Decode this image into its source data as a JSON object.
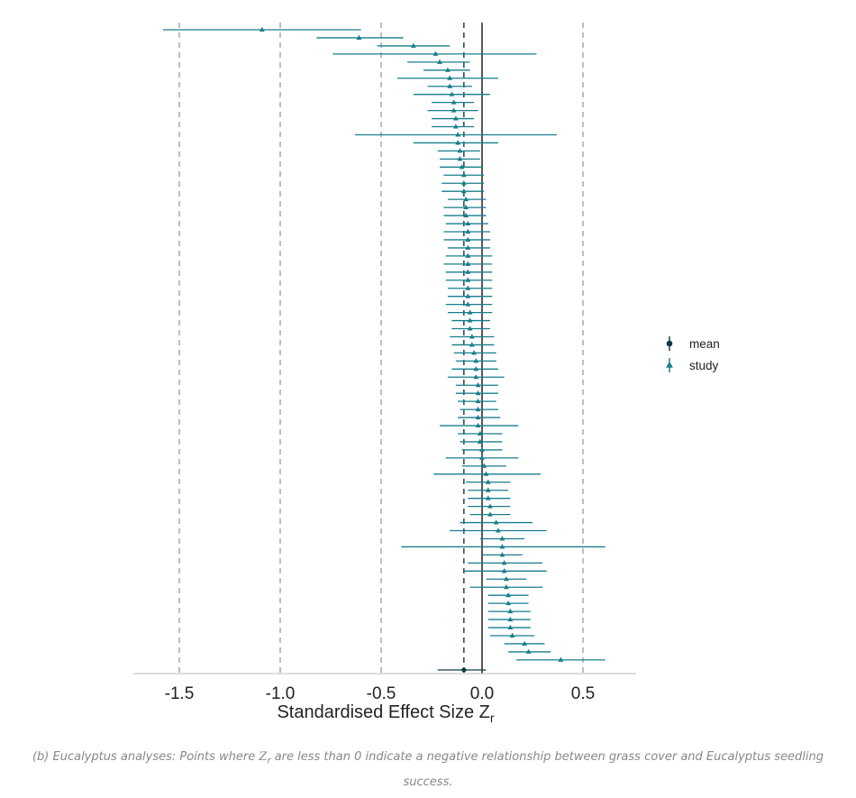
{
  "chart_data": {
    "type": "forest",
    "xlabel": "Standardised Effect Size Z",
    "xlabel_subscript": "r",
    "xticks": [
      -1.5,
      -1.0,
      -0.5,
      0.0,
      0.5
    ],
    "xtick_labels": [
      "-1.5",
      "-1.0",
      "-0.5",
      "0.0",
      "0.5"
    ],
    "xlim": [
      -1.72,
      0.75
    ],
    "reference_line": 0.0,
    "mean_line": -0.09,
    "dashed_grid": [
      -1.5,
      -1.0,
      -0.5,
      0.5
    ],
    "legend_position": "right",
    "legend": [
      {
        "label": "mean",
        "marker": "circle",
        "color": "#0d3b45"
      },
      {
        "label": "study",
        "marker": "triangle",
        "color": "#177e8c"
      }
    ],
    "mean": {
      "estimate": -0.09,
      "ci_low": -0.22,
      "ci_high": 0.02
    },
    "studies": [
      {
        "estimate": -1.09,
        "ci_low": -1.58,
        "ci_high": -0.6
      },
      {
        "estimate": -0.61,
        "ci_low": -0.82,
        "ci_high": -0.39
      },
      {
        "estimate": -0.34,
        "ci_low": -0.52,
        "ci_high": -0.16
      },
      {
        "estimate": -0.23,
        "ci_low": -0.74,
        "ci_high": 0.27
      },
      {
        "estimate": -0.21,
        "ci_low": -0.37,
        "ci_high": -0.06
      },
      {
        "estimate": -0.17,
        "ci_low": -0.29,
        "ci_high": -0.06
      },
      {
        "estimate": -0.16,
        "ci_low": -0.42,
        "ci_high": 0.08
      },
      {
        "estimate": -0.16,
        "ci_low": -0.27,
        "ci_high": -0.05
      },
      {
        "estimate": -0.15,
        "ci_low": -0.34,
        "ci_high": 0.04
      },
      {
        "estimate": -0.14,
        "ci_low": -0.25,
        "ci_high": -0.04
      },
      {
        "estimate": -0.14,
        "ci_low": -0.27,
        "ci_high": -0.02
      },
      {
        "estimate": -0.13,
        "ci_low": -0.25,
        "ci_high": -0.04
      },
      {
        "estimate": -0.13,
        "ci_low": -0.25,
        "ci_high": -0.04
      },
      {
        "estimate": -0.12,
        "ci_low": -0.63,
        "ci_high": 0.37
      },
      {
        "estimate": -0.12,
        "ci_low": -0.34,
        "ci_high": 0.08
      },
      {
        "estimate": -0.11,
        "ci_low": -0.22,
        "ci_high": -0.01
      },
      {
        "estimate": -0.11,
        "ci_low": -0.21,
        "ci_high": -0.01
      },
      {
        "estimate": -0.1,
        "ci_low": -0.21,
        "ci_high": 0.0
      },
      {
        "estimate": -0.09,
        "ci_low": -0.19,
        "ci_high": 0.01
      },
      {
        "estimate": -0.09,
        "ci_low": -0.2,
        "ci_high": 0.01
      },
      {
        "estimate": -0.09,
        "ci_low": -0.2,
        "ci_high": 0.01
      },
      {
        "estimate": -0.08,
        "ci_low": -0.17,
        "ci_high": 0.02
      },
      {
        "estimate": -0.08,
        "ci_low": -0.19,
        "ci_high": 0.02
      },
      {
        "estimate": -0.08,
        "ci_low": -0.19,
        "ci_high": 0.02
      },
      {
        "estimate": -0.07,
        "ci_low": -0.18,
        "ci_high": 0.03
      },
      {
        "estimate": -0.07,
        "ci_low": -0.19,
        "ci_high": 0.04
      },
      {
        "estimate": -0.07,
        "ci_low": -0.19,
        "ci_high": 0.04
      },
      {
        "estimate": -0.07,
        "ci_low": -0.17,
        "ci_high": 0.04
      },
      {
        "estimate": -0.07,
        "ci_low": -0.18,
        "ci_high": 0.05
      },
      {
        "estimate": -0.07,
        "ci_low": -0.19,
        "ci_high": 0.05
      },
      {
        "estimate": -0.07,
        "ci_low": -0.18,
        "ci_high": 0.05
      },
      {
        "estimate": -0.07,
        "ci_low": -0.18,
        "ci_high": 0.05
      },
      {
        "estimate": -0.07,
        "ci_low": -0.17,
        "ci_high": 0.05
      },
      {
        "estimate": -0.07,
        "ci_low": -0.17,
        "ci_high": 0.05
      },
      {
        "estimate": -0.07,
        "ci_low": -0.18,
        "ci_high": 0.05
      },
      {
        "estimate": -0.06,
        "ci_low": -0.17,
        "ci_high": 0.05
      },
      {
        "estimate": -0.06,
        "ci_low": -0.15,
        "ci_high": 0.04
      },
      {
        "estimate": -0.06,
        "ci_low": -0.15,
        "ci_high": 0.04
      },
      {
        "estimate": -0.05,
        "ci_low": -0.16,
        "ci_high": 0.06
      },
      {
        "estimate": -0.05,
        "ci_low": -0.15,
        "ci_high": 0.06
      },
      {
        "estimate": -0.04,
        "ci_low": -0.14,
        "ci_high": 0.07
      },
      {
        "estimate": -0.03,
        "ci_low": -0.13,
        "ci_high": 0.07
      },
      {
        "estimate": -0.03,
        "ci_low": -0.15,
        "ci_high": 0.08
      },
      {
        "estimate": -0.03,
        "ci_low": -0.17,
        "ci_high": 0.11
      },
      {
        "estimate": -0.02,
        "ci_low": -0.13,
        "ci_high": 0.08
      },
      {
        "estimate": -0.02,
        "ci_low": -0.13,
        "ci_high": 0.08
      },
      {
        "estimate": -0.02,
        "ci_low": -0.12,
        "ci_high": 0.07
      },
      {
        "estimate": -0.02,
        "ci_low": -0.11,
        "ci_high": 0.08
      },
      {
        "estimate": -0.02,
        "ci_low": -0.12,
        "ci_high": 0.09
      },
      {
        "estimate": -0.02,
        "ci_low": -0.21,
        "ci_high": 0.18
      },
      {
        "estimate": -0.01,
        "ci_low": -0.12,
        "ci_high": 0.1
      },
      {
        "estimate": -0.01,
        "ci_low": -0.11,
        "ci_high": 0.1
      },
      {
        "estimate": 0.0,
        "ci_low": -0.1,
        "ci_high": 0.1
      },
      {
        "estimate": 0.0,
        "ci_low": -0.18,
        "ci_high": 0.18
      },
      {
        "estimate": 0.01,
        "ci_low": -0.1,
        "ci_high": 0.12
      },
      {
        "estimate": 0.02,
        "ci_low": -0.24,
        "ci_high": 0.29
      },
      {
        "estimate": 0.03,
        "ci_low": -0.08,
        "ci_high": 0.14
      },
      {
        "estimate": 0.03,
        "ci_low": -0.07,
        "ci_high": 0.13
      },
      {
        "estimate": 0.03,
        "ci_low": -0.07,
        "ci_high": 0.14
      },
      {
        "estimate": 0.04,
        "ci_low": -0.07,
        "ci_high": 0.14
      },
      {
        "estimate": 0.04,
        "ci_low": -0.06,
        "ci_high": 0.14
      },
      {
        "estimate": 0.07,
        "ci_low": -0.11,
        "ci_high": 0.25
      },
      {
        "estimate": 0.08,
        "ci_low": -0.16,
        "ci_high": 0.32
      },
      {
        "estimate": 0.1,
        "ci_low": -0.01,
        "ci_high": 0.21
      },
      {
        "estimate": 0.1,
        "ci_low": -0.4,
        "ci_high": 0.61
      },
      {
        "estimate": 0.1,
        "ci_low": 0.0,
        "ci_high": 0.2
      },
      {
        "estimate": 0.11,
        "ci_low": -0.07,
        "ci_high": 0.3
      },
      {
        "estimate": 0.11,
        "ci_low": -0.09,
        "ci_high": 0.32
      },
      {
        "estimate": 0.12,
        "ci_low": 0.02,
        "ci_high": 0.22
      },
      {
        "estimate": 0.12,
        "ci_low": -0.06,
        "ci_high": 0.3
      },
      {
        "estimate": 0.13,
        "ci_low": 0.03,
        "ci_high": 0.23
      },
      {
        "estimate": 0.13,
        "ci_low": 0.03,
        "ci_high": 0.23
      },
      {
        "estimate": 0.14,
        "ci_low": 0.03,
        "ci_high": 0.24
      },
      {
        "estimate": 0.14,
        "ci_low": 0.03,
        "ci_high": 0.24
      },
      {
        "estimate": 0.14,
        "ci_low": 0.03,
        "ci_high": 0.24
      },
      {
        "estimate": 0.15,
        "ci_low": 0.04,
        "ci_high": 0.26
      },
      {
        "estimate": 0.21,
        "ci_low": 0.11,
        "ci_high": 0.31
      },
      {
        "estimate": 0.23,
        "ci_low": 0.13,
        "ci_high": 0.34
      },
      {
        "estimate": 0.39,
        "ci_low": 0.17,
        "ci_high": 0.61
      }
    ]
  },
  "caption": {
    "prefix": "(b) Eucalyptus analyses: Points where ",
    "symbol": "Z",
    "symbol_sub": "r",
    "suffix": " are less than 0 indicate a negative relationship between grass cover and Eucalyptus seedling success."
  },
  "colors": {
    "study": "#177e8c",
    "mean": "#0d3b45",
    "grid_dashed": "#9a9a9a",
    "zero_line": "#111111",
    "mean_line": "#0d3b45",
    "axis": "#bbbbbb"
  }
}
